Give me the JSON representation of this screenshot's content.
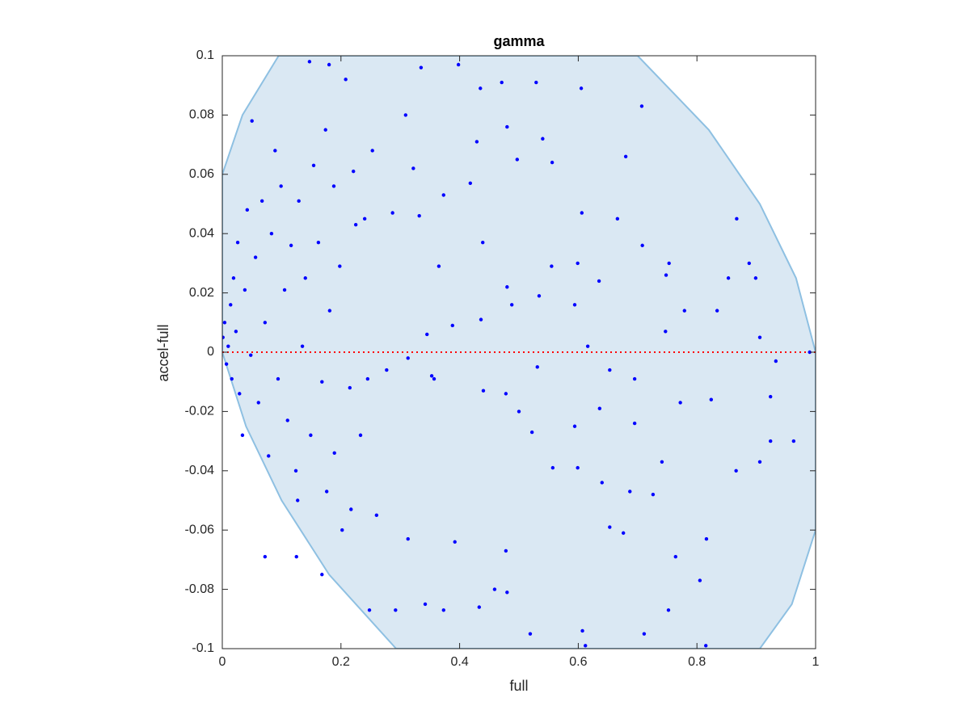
{
  "chart_data": {
    "type": "scatter",
    "title": "gamma",
    "xlabel": "full",
    "ylabel": "accel-full",
    "xlim": [
      0,
      1
    ],
    "ylim": [
      -0.1,
      0.1
    ],
    "xticks": [
      0,
      0.2,
      0.4,
      0.6,
      0.8,
      1
    ],
    "yticks": [
      -0.1,
      -0.08,
      -0.06,
      -0.04,
      -0.02,
      0,
      0.02,
      0.04,
      0.06,
      0.08,
      0.1
    ],
    "grid": false,
    "region": {
      "color": "#dae8f3",
      "edge_color": "#8ec0e2",
      "x": [
        0,
        0,
        0.034,
        0.095,
        0.7,
        0.82,
        0.906,
        0.967,
        1.0,
        1.0,
        0.96,
        0.906,
        0.293,
        0.18,
        0.1,
        0.04,
        0
      ],
      "y": [
        0,
        0.06,
        0.08,
        0.1,
        0.1,
        0.075,
        0.05,
        0.025,
        0,
        -0.06,
        -0.085,
        -0.1,
        -0.1,
        -0.075,
        -0.05,
        -0.025,
        0
      ]
    },
    "reference_line": {
      "y": 0,
      "color": "#ff0000"
    },
    "series": [
      {
        "color": "#0000ff",
        "x": [
          0.147,
          0.18,
          0.335,
          0.398,
          0.435,
          0.471,
          0.529,
          0.605,
          0.707,
          0.68,
          0.867,
          0.888,
          0.899,
          0.853,
          0.834,
          0.779,
          0.747,
          0.906,
          0.99,
          0.933,
          0.924,
          0.824,
          0.866,
          0.906,
          0.924,
          0.963,
          0.816,
          0.764,
          0.805,
          0.815,
          0.752,
          0.711,
          0.612,
          0.607,
          0.519,
          0.48,
          0.459,
          0.433,
          0.373,
          0.342,
          0.292,
          0.248,
          0.125,
          0.072,
          0.168,
          0.202,
          0.127,
          0.176,
          0.217,
          0.26,
          0.313,
          0.392,
          0.478,
          0.557,
          0.599,
          0.64,
          0.687,
          0.726,
          0.741,
          0.653,
          0.676,
          0.594,
          0.636,
          0.695,
          0.772,
          0.695,
          0.653,
          0.616,
          0.594,
          0.534,
          0.488,
          0.436,
          0.388,
          0.345,
          0.313,
          0.277,
          0.245,
          0.353,
          0.357,
          0.44,
          0.478,
          0.531,
          0.5,
          0.522,
          0.635,
          0.599,
          0.555,
          0.48,
          0.439,
          0.365,
          0.332,
          0.287,
          0.24,
          0.221,
          0.188,
          0.253,
          0.309,
          0.322,
          0.373,
          0.418,
          0.48,
          0.497,
          0.556,
          0.606,
          0.666,
          0.708,
          0.753,
          0.748,
          0.54,
          0.429,
          0.001,
          0.004,
          0.007,
          0.01,
          0.014,
          0.016,
          0.019,
          0.023,
          0.026,
          0.029,
          0.034,
          0.038,
          0.042,
          0.048,
          0.05,
          0.056,
          0.061,
          0.067,
          0.072,
          0.078,
          0.083,
          0.089,
          0.094,
          0.099,
          0.105,
          0.11,
          0.116,
          0.124,
          0.129,
          0.135,
          0.14,
          0.149,
          0.154,
          0.162,
          0.168,
          0.174,
          0.181,
          0.189,
          0.198,
          0.208,
          0.215,
          0.225,
          0.233
        ],
        "values": [
          0.098,
          0.097,
          0.096,
          0.097,
          0.089,
          0.091,
          0.091,
          0.089,
          0.083,
          0.066,
          0.045,
          0.03,
          0.025,
          0.025,
          0.014,
          0.014,
          0.007,
          0.005,
          0,
          -0.003,
          -0.015,
          -0.016,
          -0.04,
          -0.037,
          -0.03,
          -0.03,
          -0.063,
          -0.069,
          -0.077,
          -0.099,
          -0.087,
          -0.095,
          -0.099,
          -0.094,
          -0.095,
          -0.081,
          -0.08,
          -0.086,
          -0.087,
          -0.085,
          -0.087,
          -0.087,
          -0.069,
          -0.069,
          -0.075,
          -0.06,
          -0.05,
          -0.047,
          -0.053,
          -0.055,
          -0.063,
          -0.064,
          -0.067,
          -0.039,
          -0.039,
          -0.044,
          -0.047,
          -0.048,
          -0.037,
          -0.059,
          -0.061,
          -0.025,
          -0.019,
          -0.024,
          -0.017,
          -0.009,
          -0.006,
          0.002,
          0.016,
          0.019,
          0.016,
          0.011,
          0.009,
          0.006,
          -0.002,
          -0.006,
          -0.009,
          -0.008,
          -0.009,
          -0.013,
          -0.014,
          -0.005,
          -0.02,
          -0.027,
          0.024,
          0.03,
          0.029,
          0.022,
          0.037,
          0.029,
          0.046,
          0.047,
          0.045,
          0.061,
          0.056,
          0.068,
          0.08,
          0.062,
          0.053,
          0.057,
          0.076,
          0.065,
          0.064,
          0.047,
          0.045,
          0.036,
          0.03,
          0.026,
          0.072,
          0.071,
          0.005,
          0.01,
          -0.004,
          0.002,
          0.016,
          -0.009,
          0.025,
          0.007,
          0.037,
          -0.014,
          -0.028,
          0.021,
          0.048,
          -0.001,
          0.078,
          0.032,
          -0.017,
          0.051,
          0.01,
          -0.035,
          0.04,
          0.068,
          -0.009,
          0.056,
          0.021,
          -0.023,
          0.036,
          -0.04,
          0.051,
          0.002,
          0.025,
          -0.028,
          0.063,
          0.037,
          -0.01,
          0.075,
          0.014,
          -0.034,
          0.029,
          0.092,
          -0.012,
          0.043,
          -0.028
        ]
      }
    ]
  }
}
